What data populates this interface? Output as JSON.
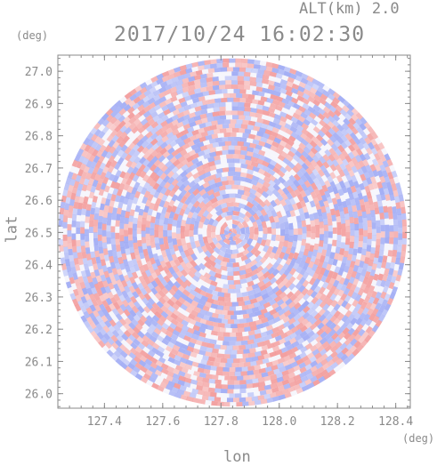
{
  "header": {
    "altitude_label": "ALT(km) 2.0",
    "timestamp": "2017/10/24 16:02:30"
  },
  "chart_data": {
    "type": "heatmap",
    "xlabel": "lon",
    "ylabel": "lat",
    "x_unit": "(deg)",
    "y_unit": "(deg)",
    "xlim": [
      127.24,
      128.45
    ],
    "ylim": [
      25.955,
      27.05
    ],
    "x_ticks": [
      "127.4",
      "127.6",
      "127.8",
      "128.0",
      "128.2",
      "128.4"
    ],
    "y_ticks": [
      "26.0",
      "26.1",
      "26.2",
      "26.3",
      "26.4",
      "26.5",
      "26.6",
      "26.7",
      "26.8",
      "26.9",
      "27.0"
    ],
    "center": {
      "lon": 127.84,
      "lat": 26.5
    },
    "radius_deg_lat": 0.54,
    "colors": {
      "positive": "#f2a0a0",
      "negative": "#a8b0f2",
      "neutral": "#ffffff",
      "axis": "#8a8a8a"
    }
  }
}
